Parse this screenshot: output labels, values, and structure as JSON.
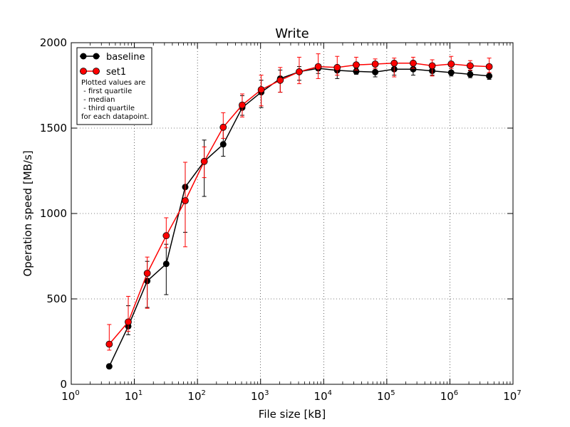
{
  "chart_data": {
    "type": "line",
    "title": "Write",
    "xlabel": "File size [kB]",
    "ylabel": "Operation speed [MB/s]",
    "xscale": "log",
    "xlim": [
      1,
      10000000
    ],
    "ylim": [
      0,
      2000
    ],
    "xticks": [
      {
        "value": 1,
        "base": "10",
        "exp": "0"
      },
      {
        "value": 10,
        "base": "10",
        "exp": "1"
      },
      {
        "value": 100,
        "base": "10",
        "exp": "2"
      },
      {
        "value": 1000,
        "base": "10",
        "exp": "3"
      },
      {
        "value": 10000,
        "base": "10",
        "exp": "4"
      },
      {
        "value": 100000,
        "base": "10",
        "exp": "5"
      },
      {
        "value": 1000000,
        "base": "10",
        "exp": "6"
      },
      {
        "value": 10000000,
        "base": "10",
        "exp": "7"
      }
    ],
    "yticks": [
      0,
      500,
      1000,
      1500,
      2000
    ],
    "yticklabels": [
      "0",
      "500",
      "1000",
      "1500",
      "2000"
    ],
    "grid": true,
    "legend_position": "top-left",
    "legend_note": [
      "Plotted values are",
      " - first quartile",
      " - median",
      " - third quartile",
      "for each datapoint."
    ],
    "series": [
      {
        "name": "baseline",
        "color": "#000000",
        "x": [
          4,
          8,
          16,
          32,
          64,
          128,
          256,
          512,
          1024,
          2048,
          4096,
          8192,
          16384,
          32768,
          65536,
          131072,
          262144,
          524288,
          1048576,
          2097152,
          4194304
        ],
        "median": [
          105,
          340,
          605,
          705,
          1155,
          1305,
          1405,
          1620,
          1710,
          1790,
          1830,
          1850,
          1838,
          1832,
          1828,
          1845,
          1845,
          1835,
          1825,
          1815,
          1805
        ],
        "q1": [
          105,
          290,
          450,
          525,
          890,
          1100,
          1335,
          1575,
          1620,
          1710,
          1780,
          1820,
          1790,
          1815,
          1800,
          1810,
          1810,
          1810,
          1805,
          1795,
          1785
        ],
        "q3": [
          105,
          460,
          720,
          820,
          1300,
          1430,
          1500,
          1690,
          1780,
          1840,
          1860,
          1870,
          1860,
          1850,
          1850,
          1865,
          1870,
          1855,
          1850,
          1835,
          1825
        ]
      },
      {
        "name": "set1",
        "color": "#ff0000",
        "x": [
          4,
          8,
          16,
          32,
          64,
          128,
          256,
          512,
          1024,
          2048,
          4096,
          8192,
          16384,
          32768,
          65536,
          131072,
          262144,
          524288,
          1048576,
          2097152,
          4194304
        ],
        "median": [
          235,
          365,
          650,
          870,
          1075,
          1305,
          1505,
          1635,
          1725,
          1780,
          1830,
          1860,
          1855,
          1870,
          1875,
          1880,
          1880,
          1865,
          1875,
          1865,
          1860
        ],
        "q1": [
          200,
          310,
          445,
          800,
          805,
          1210,
          1440,
          1565,
          1630,
          1710,
          1760,
          1790,
          1810,
          1840,
          1850,
          1800,
          1850,
          1805,
          1850,
          1840,
          1825
        ],
        "q3": [
          350,
          515,
          745,
          975,
          1300,
          1390,
          1590,
          1700,
          1810,
          1855,
          1915,
          1935,
          1920,
          1915,
          1905,
          1910,
          1915,
          1900,
          1920,
          1895,
          1910
        ]
      }
    ]
  }
}
